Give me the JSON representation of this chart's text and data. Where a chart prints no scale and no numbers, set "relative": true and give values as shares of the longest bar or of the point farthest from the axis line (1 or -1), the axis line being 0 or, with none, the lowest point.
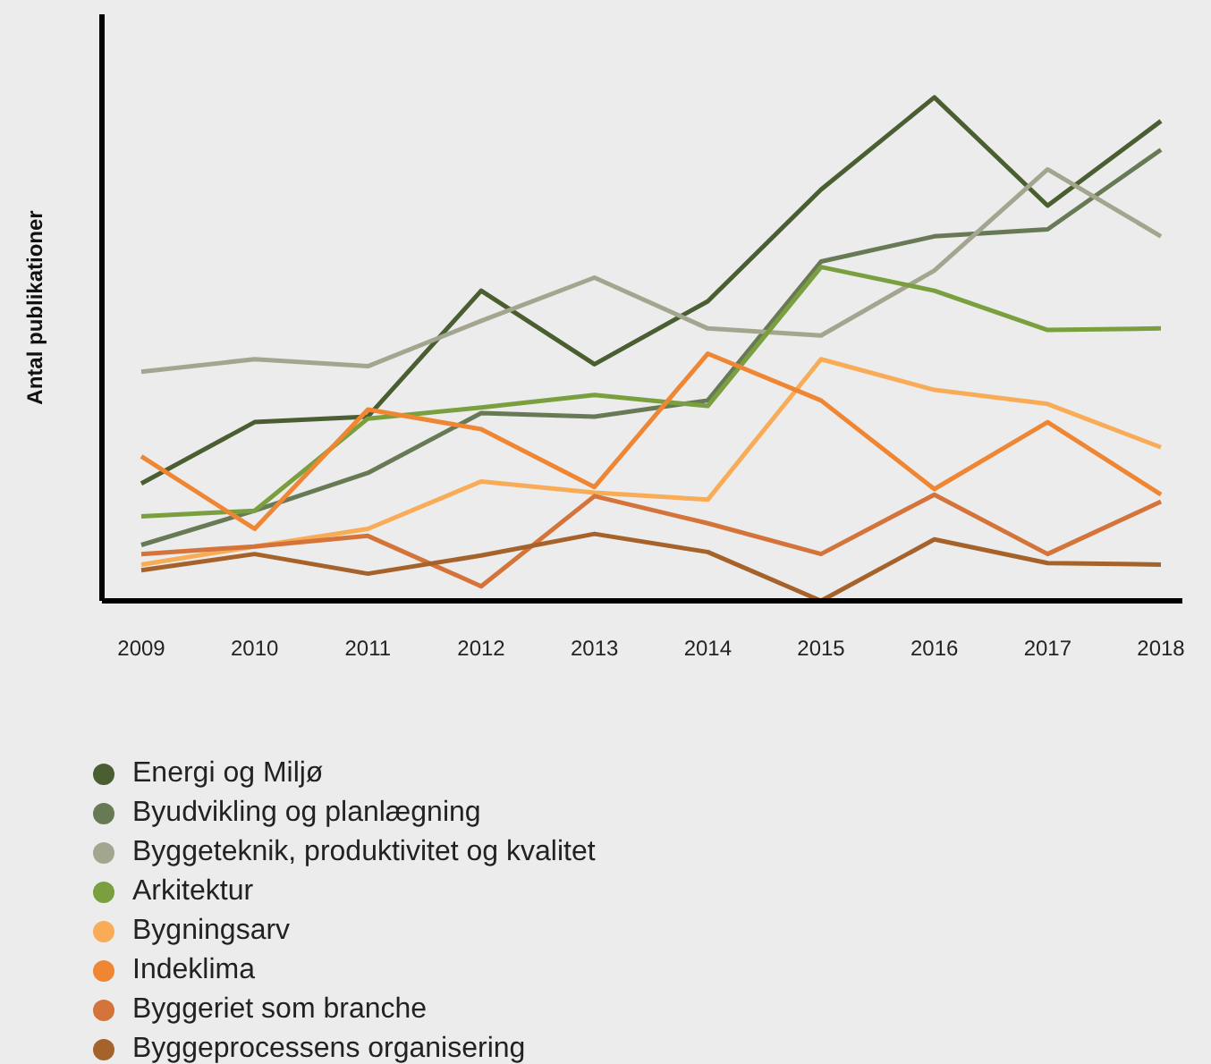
{
  "chart_data": {
    "type": "line",
    "relative": true,
    "ylabel": "Antal publikationer",
    "legend": "bottom",
    "grid": false,
    "marker": "none",
    "categories": [
      "2009",
      "2010",
      "2011",
      "2012",
      "2013",
      "2014",
      "2015",
      "2016",
      "2017",
      "2018"
    ],
    "series": [
      {
        "name": "Energi og Miljø",
        "color": "#4a5e32",
        "values": [
          0.233,
          0.355,
          0.366,
          0.616,
          0.47,
          0.595,
          0.817,
          1,
          0.785,
          0.953
        ]
      },
      {
        "name": "Byudvikling og planlægning",
        "color": "#687a55",
        "values": [
          0.111,
          0.179,
          0.254,
          0.373,
          0.366,
          0.398,
          0.674,
          0.724,
          0.738,
          0.896
        ]
      },
      {
        "name": "Byggeteknik, produktivitet og kvalitet",
        "color": "#a3a68f",
        "values": [
          0.455,
          0.48,
          0.466,
          0.556,
          0.642,
          0.541,
          0.527,
          0.656,
          0.857,
          0.724
        ]
      },
      {
        "name": "Arkitektur",
        "color": "#7a9f3e",
        "values": [
          0.168,
          0.179,
          0.362,
          0.384,
          0.409,
          0.387,
          0.663,
          0.616,
          0.538,
          0.541
        ]
      },
      {
        "name": "Bygningsarv",
        "color": "#f9ac58",
        "values": [
          0.072,
          0.108,
          0.143,
          0.237,
          0.215,
          0.201,
          0.48,
          0.419,
          0.391,
          0.305
        ]
      },
      {
        "name": "Indeklima",
        "color": "#ef8634",
        "values": [
          0.287,
          0.143,
          0.38,
          0.341,
          0.226,
          0.491,
          0.398,
          0.222,
          0.355,
          0.211
        ]
      },
      {
        "name": "Byggeriet som branche",
        "color": "#d4743a",
        "values": [
          0.093,
          0.108,
          0.129,
          0.029,
          0.208,
          0.154,
          0.093,
          0.211,
          0.093,
          0.197
        ]
      },
      {
        "name": "Byggeprocessens organisering",
        "color": "#a6622b",
        "values": [
          0.061,
          0.093,
          0.054,
          0.09,
          0.133,
          0.097,
          0,
          0.122,
          0.075,
          0.072
        ]
      }
    ]
  }
}
